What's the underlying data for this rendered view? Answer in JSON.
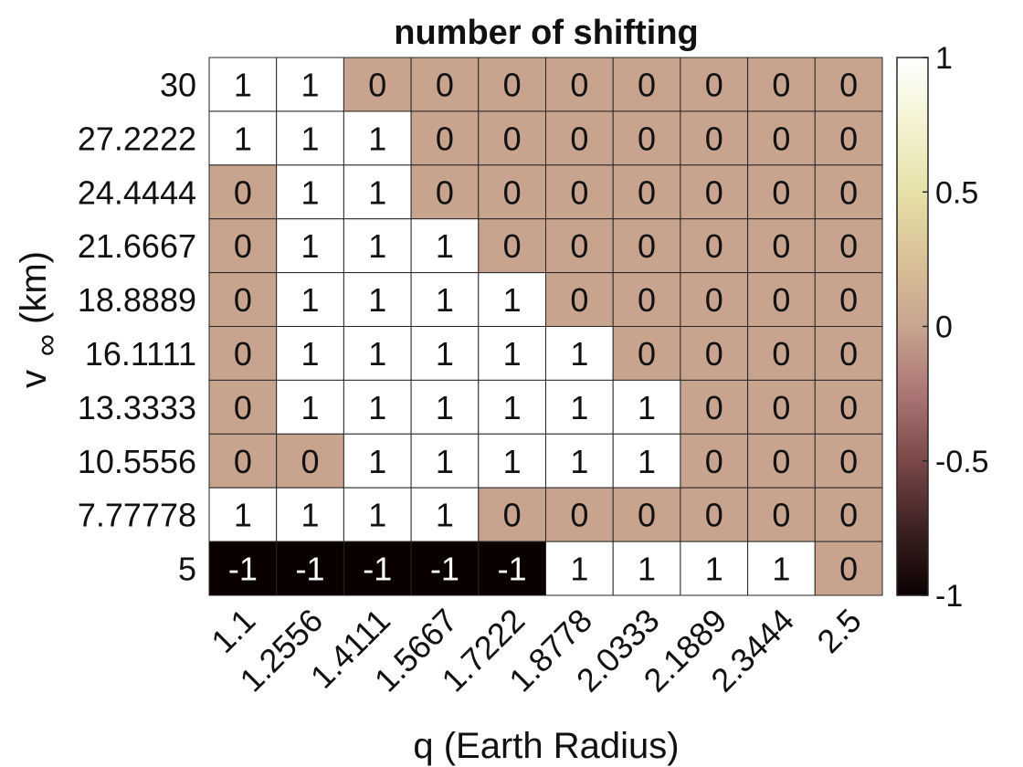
{
  "chart_data": {
    "type": "heatmap",
    "title": "number of shifting",
    "xlabel": "q (Earth Radius)",
    "ylabel_main": "v",
    "ylabel_sub": "∞",
    "ylabel_unit": "(km)",
    "x": [
      "1.1",
      "1.2556",
      "1.4111",
      "1.5667",
      "1.7222",
      "1.8778",
      "2.0333",
      "2.1889",
      "2.3444",
      "2.5"
    ],
    "y": [
      "30",
      "27.2222",
      "24.4444",
      "21.6667",
      "18.8889",
      "16.1111",
      "13.3333",
      "10.5556",
      "7.77778",
      "5"
    ],
    "values": [
      [
        1,
        1,
        0,
        0,
        0,
        0,
        0,
        0,
        0,
        0
      ],
      [
        1,
        1,
        1,
        0,
        0,
        0,
        0,
        0,
        0,
        0
      ],
      [
        0,
        1,
        1,
        0,
        0,
        0,
        0,
        0,
        0,
        0
      ],
      [
        0,
        1,
        1,
        1,
        0,
        0,
        0,
        0,
        0,
        0
      ],
      [
        0,
        1,
        1,
        1,
        1,
        0,
        0,
        0,
        0,
        0
      ],
      [
        0,
        1,
        1,
        1,
        1,
        1,
        0,
        0,
        0,
        0
      ],
      [
        0,
        1,
        1,
        1,
        1,
        1,
        1,
        0,
        0,
        0
      ],
      [
        0,
        0,
        1,
        1,
        1,
        1,
        1,
        0,
        0,
        0
      ],
      [
        1,
        1,
        1,
        1,
        0,
        0,
        0,
        0,
        0,
        0
      ],
      [
        -1,
        -1,
        -1,
        -1,
        -1,
        1,
        1,
        1,
        1,
        0
      ]
    ],
    "color_range": [
      -1,
      1
    ],
    "colorbar_ticks": [
      "1",
      "0.5",
      "0",
      "-0.5",
      "-1"
    ],
    "colorbar_tick_values": [
      1,
      0.5,
      0,
      -0.5,
      -1
    ],
    "colormap": "pink",
    "cell_colors": {
      "-1": "#0b0000",
      "0": "#c8a48f",
      "1": "#ffffff"
    }
  }
}
